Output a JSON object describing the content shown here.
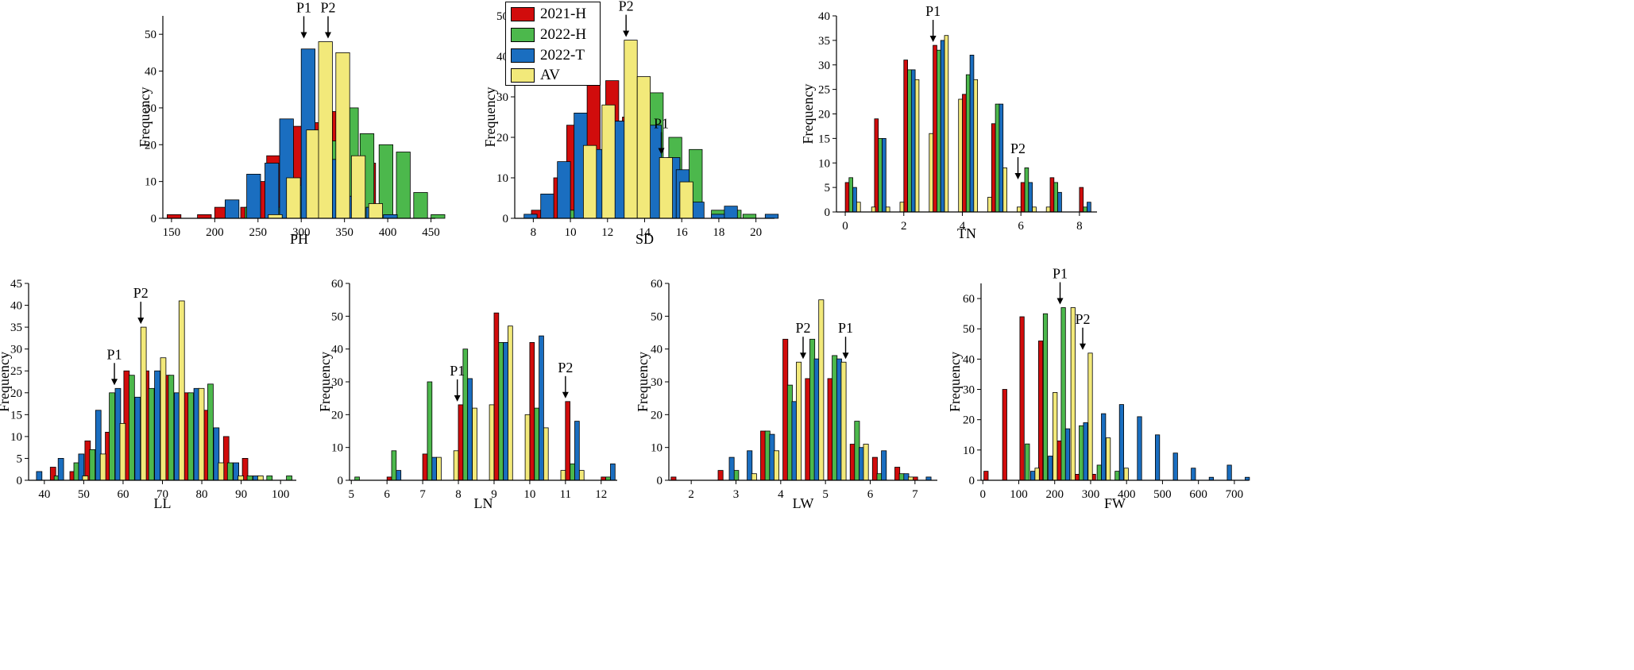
{
  "legend": [
    {
      "name": "2021-H",
      "color": "#d10c0c"
    },
    {
      "name": "2022-H",
      "color": "#4cb84c"
    },
    {
      "name": "2022-T",
      "color": "#1a6ec0"
    },
    {
      "name": "AV",
      "color": "#f2e97a"
    }
  ],
  "chart_data": [
    {
      "type": "bar",
      "id": "PH",
      "xlabel": "PH",
      "ylabel": "Frequency",
      "xlim": [
        140,
        455
      ],
      "ylim": [
        0,
        55
      ],
      "xticks": [
        150,
        200,
        250,
        300,
        350,
        400,
        450
      ],
      "yticks": [
        0,
        10,
        20,
        30,
        40,
        50
      ],
      "bin_width": 16,
      "series": [
        {
          "name": "2021-H",
          "x": [
            145,
            180,
            200,
            230,
            245,
            260,
            285,
            305,
            325,
            345,
            370,
            385
          ],
          "values": [
            1,
            1,
            3,
            3,
            10,
            17,
            25,
            26,
            29,
            16,
            15,
            3
          ]
        },
        {
          "name": "2022-H",
          "x": [
            235,
            268,
            293,
            310,
            330,
            350,
            368,
            390,
            410,
            430,
            450
          ],
          "values": [
            3,
            3,
            9,
            15,
            21,
            30,
            23,
            20,
            18,
            7,
            1
          ]
        },
        {
          "name": "2022-T",
          "x": [
            212,
            237,
            258,
            275,
            300,
            313,
            335,
            355,
            375,
            395
          ],
          "values": [
            5,
            12,
            15,
            27,
            46,
            19,
            16,
            6,
            3,
            1
          ]
        },
        {
          "name": "AV",
          "x": [
            262,
            283,
            306,
            320,
            340,
            358,
            378
          ],
          "values": [
            1,
            11,
            24,
            48,
            45,
            17,
            4
          ]
        }
      ],
      "annotations": [
        {
          "text": "P1",
          "x": 303,
          "y": 48
        },
        {
          "text": "P2",
          "x": 331,
          "y": 48
        }
      ]
    },
    {
      "type": "bar",
      "id": "SD",
      "xlabel": "SD",
      "ylabel": "Frequency",
      "xlim": [
        7,
        21
      ],
      "ylim": [
        0,
        50
      ],
      "xticks": [
        8,
        10,
        12,
        14,
        16,
        18,
        20
      ],
      "yticks": [
        0,
        10,
        20,
        30,
        40,
        50
      ],
      "bin_width": 0.7,
      "series": [
        {
          "name": "2021-H",
          "x": [
            7.9,
            9.1,
            9.8,
            10.9,
            11.9,
            12.8,
            13.9,
            15.0,
            15.9
          ],
          "values": [
            2,
            10,
            23,
            34,
            34,
            25,
            17,
            4,
            1
          ]
        },
        {
          "name": "2022-H",
          "x": [
            9.5,
            10.3,
            11.1,
            12.1,
            13.2,
            14.3,
            15.3,
            16.4,
            17.6,
            18.5,
            19.3
          ],
          "values": [
            2,
            11,
            13,
            24,
            27,
            31,
            20,
            17,
            2,
            2,
            1
          ]
        },
        {
          "name": "2022-T",
          "x": [
            7.5,
            8.4,
            9.3,
            10.2,
            11.3,
            12.3,
            13.3,
            14.2,
            15.2,
            15.7,
            16.5,
            17.6,
            18.3,
            20.5
          ],
          "values": [
            1,
            6,
            14,
            26,
            17,
            24,
            23,
            23,
            15,
            12,
            4,
            1,
            3,
            1
          ]
        },
        {
          "name": "AV",
          "x": [
            10.7,
            11.7,
            12.9,
            13.6,
            14.8,
            15.9
          ],
          "values": [
            18,
            28,
            44,
            35,
            15,
            9
          ]
        }
      ],
      "annotations": [
        {
          "text": "P2",
          "x": 13.0,
          "y": 44
        },
        {
          "text": "P1",
          "x": 14.9,
          "y": 15
        }
      ]
    },
    {
      "type": "bar",
      "id": "TN",
      "xlabel": "TN",
      "ylabel": "Frequency",
      "xlim": [
        -0.3,
        8.6
      ],
      "ylim": [
        0,
        40
      ],
      "xticks": [
        0,
        2,
        4,
        6,
        8
      ],
      "yticks": [
        0,
        5,
        10,
        15,
        20,
        25,
        30,
        35,
        40
      ],
      "bin_width": 0.13,
      "series": [
        {
          "name": "2021-H",
          "x": [
            0,
            1,
            2,
            3,
            4,
            5,
            6,
            7,
            8
          ],
          "values": [
            6,
            19,
            31,
            34,
            24,
            18,
            6,
            7,
            5
          ]
        },
        {
          "name": "2022-H",
          "x": [
            0.13,
            1.13,
            2.13,
            3.13,
            4.13,
            5.13,
            6.13,
            7.13,
            8.13
          ],
          "values": [
            7,
            15,
            29,
            33,
            28,
            22,
            9,
            6,
            1
          ]
        },
        {
          "name": "2022-T",
          "x": [
            0.26,
            1.26,
            2.26,
            3.26,
            4.26,
            5.26,
            6.26,
            7.26,
            8.26
          ],
          "values": [
            5,
            15,
            29,
            35,
            32,
            22,
            6,
            4,
            2
          ]
        },
        {
          "name": "AV",
          "x": [
            0.39,
            0.9,
            1.39,
            1.87,
            2.39,
            2.87,
            3.39,
            3.87,
            4.39,
            4.87,
            5.39,
            5.87,
            6.39,
            6.87
          ],
          "values": [
            2,
            1,
            1,
            2,
            27,
            16,
            36,
            23,
            27,
            3,
            9,
            1,
            1,
            1
          ]
        }
      ],
      "annotations": [
        {
          "text": "P1",
          "x": 3.0,
          "y": 34
        },
        {
          "text": "P2",
          "x": 5.9,
          "y": 6
        }
      ]
    },
    {
      "type": "bar",
      "id": "LL",
      "xlabel": "LL",
      "ylabel": "Frequency",
      "xlim": [
        36,
        104
      ],
      "ylim": [
        0,
        45
      ],
      "xticks": [
        40,
        50,
        60,
        70,
        80,
        90,
        100
      ],
      "yticks": [
        0,
        5,
        10,
        15,
        20,
        25,
        30,
        35,
        40,
        45
      ],
      "bin_width": 1.4,
      "series": [
        {
          "name": "2021-H",
          "x": [
            41.5,
            46.5,
            50.3,
            55.5,
            60.2,
            65.2,
            70.5,
            75.5,
            80.5,
            85.5,
            90.3
          ],
          "values": [
            3,
            2,
            9,
            11,
            25,
            25,
            24,
            20,
            16,
            10,
            5
          ]
        },
        {
          "name": "2022-H",
          "x": [
            42.5,
            47.5,
            51.5,
            56.5,
            61.5,
            66.5,
            71.5,
            76.5,
            81.5,
            86.5,
            91.5,
            96.5,
            101.5
          ],
          "values": [
            1,
            4,
            7,
            20,
            24,
            21,
            24,
            20,
            22,
            4,
            1,
            1,
            1
          ]
        },
        {
          "name": "2022-T",
          "x": [
            38.0,
            43.5,
            48.7,
            53.0,
            58.0,
            63.0,
            68.0,
            73.0,
            78.0,
            83.0,
            88.0,
            93.0
          ],
          "values": [
            2,
            5,
            6,
            16,
            21,
            19,
            25,
            20,
            21,
            12,
            4,
            1
          ]
        },
        {
          "name": "AV",
          "x": [
            49.7,
            54.2,
            59.2,
            64.5,
            69.5,
            74.2,
            79.2,
            84.2,
            89.2,
            94.2
          ],
          "values": [
            1,
            6,
            13,
            35,
            28,
            41,
            21,
            4,
            1,
            1
          ]
        }
      ],
      "annotations": [
        {
          "text": "P1",
          "x": 57.8,
          "y": 21
        },
        {
          "text": "P2",
          "x": 64.5,
          "y": 35
        }
      ]
    },
    {
      "type": "bar",
      "id": "LN",
      "xlabel": "LN",
      "ylabel": "Frequency",
      "xlim": [
        4.95,
        12.45
      ],
      "ylim": [
        0,
        60
      ],
      "xticks": [
        5,
        6,
        7,
        8,
        9,
        10,
        11,
        12
      ],
      "yticks": [
        0,
        10,
        20,
        30,
        40,
        50,
        60
      ],
      "bin_width": 0.13,
      "series": [
        {
          "name": "2021-H",
          "x": [
            6.0,
            7.0,
            8.0,
            9.0,
            10.0,
            11.0,
            12.0
          ],
          "values": [
            1,
            8,
            23,
            51,
            42,
            24,
            1
          ]
        },
        {
          "name": "2022-H",
          "x": [
            5.1,
            6.13,
            7.13,
            8.13,
            9.13,
            10.13,
            11.13,
            12.13
          ],
          "values": [
            1,
            9,
            30,
            40,
            42,
            22,
            5,
            1
          ]
        },
        {
          "name": "2022-T",
          "x": [
            6.26,
            7.26,
            8.26,
            9.26,
            10.26,
            11.26,
            12.26
          ],
          "values": [
            3,
            7,
            31,
            42,
            44,
            18,
            5
          ]
        },
        {
          "name": "AV",
          "x": [
            7.39,
            7.87,
            8.39,
            8.87,
            9.39,
            9.87,
            10.39,
            10.87,
            11.39
          ],
          "values": [
            7,
            9,
            22,
            23,
            47,
            20,
            16,
            3,
            3
          ]
        }
      ],
      "annotations": [
        {
          "text": "P1",
          "x": 7.97,
          "y": 23
        },
        {
          "text": "P2",
          "x": 11.0,
          "y": 24
        }
      ]
    },
    {
      "type": "bar",
      "id": "LW",
      "xlabel": "LW",
      "ylabel": "Frequency",
      "xlim": [
        1.5,
        7.5
      ],
      "ylim": [
        0,
        60
      ],
      "xticks": [
        2,
        3,
        4,
        5,
        6,
        7
      ],
      "yticks": [
        0,
        10,
        20,
        30,
        40,
        50,
        60
      ],
      "bin_width": 0.11,
      "series": [
        {
          "name": "2021-H",
          "x": [
            1.55,
            2.6,
            3.55,
            4.05,
            4.55,
            5.05,
            5.55,
            6.05,
            6.55,
            6.95
          ],
          "values": [
            1,
            3,
            15,
            43,
            31,
            31,
            11,
            7,
            4,
            1
          ]
        },
        {
          "name": "2022-H",
          "x": [
            2.95,
            3.65,
            4.15,
            4.65,
            5.15,
            5.65,
            6.15,
            6.65
          ],
          "values": [
            3,
            15,
            29,
            43,
            38,
            18,
            2,
            2
          ]
        },
        {
          "name": "2022-T",
          "x": [
            2.85,
            3.25,
            3.75,
            4.25,
            4.75,
            5.25,
            5.75,
            6.25,
            6.75,
            7.25
          ],
          "values": [
            7,
            9,
            14,
            24,
            37,
            37,
            10,
            9,
            2,
            1
          ]
        },
        {
          "name": "AV",
          "x": [
            3.35,
            3.85,
            4.35,
            4.85,
            5.35,
            5.85,
            6.85
          ],
          "values": [
            2,
            9,
            36,
            55,
            36,
            11,
            1
          ]
        }
      ],
      "annotations": [
        {
          "text": "P2",
          "x": 4.5,
          "y": 36
        },
        {
          "text": "P1",
          "x": 5.45,
          "y": 36
        }
      ]
    },
    {
      "type": "bar",
      "id": "FW",
      "xlabel": "FW",
      "ylabel": "Frequency",
      "xlim": [
        -5,
        740
      ],
      "ylim": [
        0,
        65
      ],
      "xticks": [
        0,
        100,
        200,
        300,
        400,
        500,
        600,
        700
      ],
      "yticks": [
        0,
        10,
        20,
        30,
        40,
        50,
        60
      ],
      "bin_width": 12,
      "series": [
        {
          "name": "2021-H",
          "x": [
            3,
            55,
            103,
            155,
            207,
            257,
            302
          ],
          "values": [
            3,
            30,
            54,
            46,
            13,
            2,
            2
          ]
        },
        {
          "name": "2022-H",
          "x": [
            118,
            168,
            218,
            268,
            318,
            368
          ],
          "values": [
            12,
            55,
            57,
            18,
            5,
            3
          ]
        },
        {
          "name": "2022-T",
          "x": [
            133,
            182,
            230,
            280,
            330,
            380,
            430,
            480,
            530,
            580,
            630,
            680,
            730
          ],
          "values": [
            3,
            8,
            17,
            19,
            22,
            25,
            21,
            15,
            9,
            4,
            1,
            5,
            1
          ]
        },
        {
          "name": "AV",
          "x": [
            145,
            195,
            245,
            293,
            343,
            393
          ],
          "values": [
            4,
            29,
            57,
            42,
            14,
            4
          ]
        }
      ],
      "annotations": [
        {
          "text": "P1",
          "x": 215,
          "y": 57
        },
        {
          "text": "P2",
          "x": 278,
          "y": 42
        }
      ]
    }
  ]
}
